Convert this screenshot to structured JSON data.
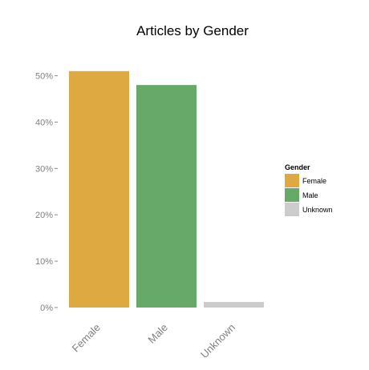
{
  "chart_data": {
    "type": "bar",
    "title": "Articles by Gender",
    "xlabel": "",
    "ylabel": "",
    "categories": [
      "Female",
      "Male",
      "Unknown"
    ],
    "values": [
      51,
      48,
      1.2
    ],
    "colors": [
      "#DFA942",
      "#67A969",
      "#CCCCCC"
    ],
    "ylim": [
      0,
      52
    ],
    "y_ticks": [
      0,
      10,
      20,
      30,
      40,
      50
    ],
    "y_tick_labels": [
      "0%",
      "10%",
      "20%",
      "30%",
      "40%",
      "50%"
    ],
    "grid": false,
    "legend": {
      "title": "Gender",
      "placement": "right",
      "entries": [
        "Female",
        "Male",
        "Unknown"
      ]
    }
  }
}
